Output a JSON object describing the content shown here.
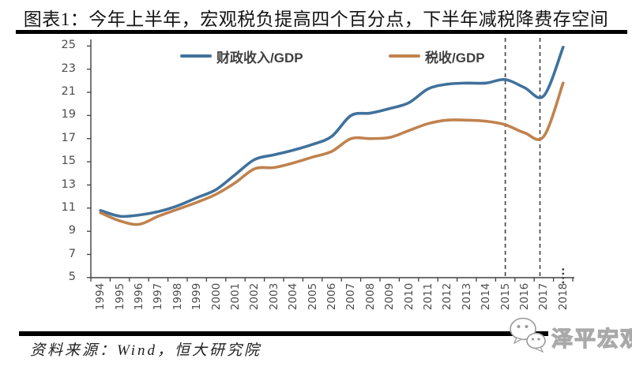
{
  "header": {
    "title": "图表1：今年上半年，宏观税负提高四个百分点，下半年减税降费存空间"
  },
  "footer": {
    "source": "资料来源：Wind，恒大研究院",
    "watermark": "泽平宏观",
    "watermark_icon": "wechat-icon"
  },
  "chart_data": {
    "type": "line",
    "title": "图表1：今年上半年，宏观税负提高四个百分点，下半年减税降费存空间",
    "x": [
      1994,
      1995,
      1996,
      1997,
      1998,
      1999,
      2000,
      2001,
      2002,
      2003,
      2004,
      2005,
      2006,
      2007,
      2008,
      2009,
      2010,
      2011,
      2012,
      2013,
      2014,
      2015,
      2016,
      2017,
      2018
    ],
    "series": [
      {
        "name": "财政收入/GDP",
        "color": "#40719C",
        "values": [
          10.8,
          10.3,
          10.4,
          10.7,
          11.2,
          11.9,
          12.6,
          13.9,
          15.2,
          15.6,
          16.0,
          16.5,
          17.2,
          19.0,
          19.2,
          19.6,
          20.1,
          21.3,
          21.7,
          21.8,
          21.8,
          22.1,
          21.4,
          20.7,
          24.9
        ]
      },
      {
        "name": "税收/GDP",
        "color": "#C0824E",
        "values": [
          10.6,
          9.9,
          9.6,
          10.3,
          10.9,
          11.5,
          12.2,
          13.2,
          14.4,
          14.5,
          14.9,
          15.4,
          15.9,
          17.0,
          17.0,
          17.1,
          17.7,
          18.3,
          18.6,
          18.6,
          18.5,
          18.2,
          17.5,
          17.2,
          21.8
        ]
      }
    ],
    "xlabel": "",
    "ylabel": "",
    "ylim": [
      5,
      25
    ],
    "yticks": [
      5,
      7,
      9,
      11,
      13,
      15,
      17,
      19,
      21,
      23,
      25
    ],
    "grid": false,
    "line_style": "smooth",
    "legend_position": "top-inside",
    "annotations": {
      "dashed_vlines_x": [
        2015,
        2016.8
      ],
      "axis_end_marker": "⋮",
      "axis_end_marker_year": 2018
    },
    "axis_color": "#404040",
    "dashed_line_color": "#404040"
  }
}
